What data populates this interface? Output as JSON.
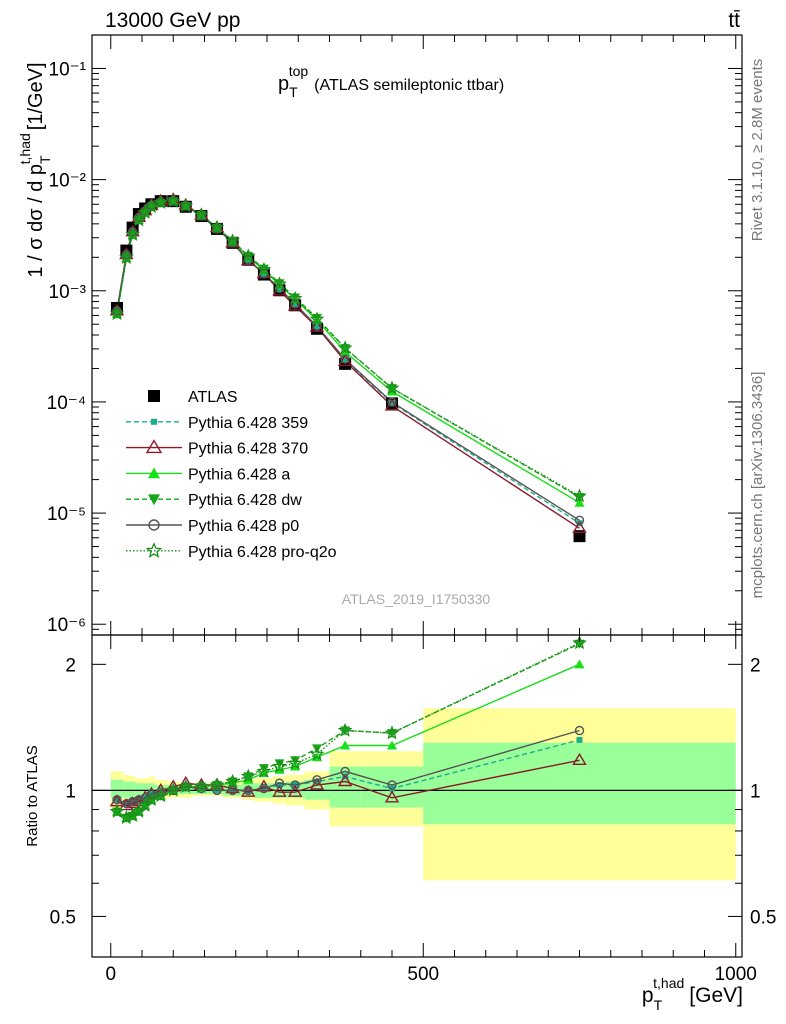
{
  "header": {
    "energy_label": "13000 GeV pp",
    "process_label": "tt̄",
    "analysis_id": "ATLAS_2019_I1750330",
    "rivet_label": "Rivet 3.1.10, ≥ 2.8M events",
    "mcplots_label": "mcplots.cern.ch [arXiv:1306.3436]"
  },
  "chart_data": [
    {
      "type": "line",
      "title_main": "p",
      "title_sub": "T",
      "title_sup": "top",
      "title_rest": "(ATLAS semileptonic ttbar)",
      "ylabel": "1 / σ dσ / d p_T^{t,had} [1/GeV]",
      "yscale": "log",
      "ylim": [
        8e-07,
        0.2
      ],
      "xlim": [
        -30,
        1010
      ],
      "ytick_labels": [
        "10⁻⁶",
        "10⁻⁵",
        "10⁻⁴",
        "10⁻³",
        "10⁻²",
        "10⁻¹"
      ],
      "ytick_values": [
        1e-06,
        1e-05,
        0.0001,
        0.001,
        0.01,
        0.1
      ],
      "legend_position": "middle-left",
      "x": [
        10,
        25,
        35,
        45,
        55,
        65,
        80,
        100,
        120,
        145,
        170,
        195,
        220,
        245,
        270,
        295,
        330,
        375,
        450,
        750
      ],
      "series": [
        {
          "name": "ATLAS",
          "color": "#000000",
          "dash": "",
          "marker": "square",
          "connect": false,
          "values": [
            0.0007,
            0.0023,
            0.0037,
            0.0049,
            0.0055,
            0.006,
            0.0064,
            0.0064,
            0.0057,
            0.0047,
            0.0036,
            0.0027,
            0.0019,
            0.0014,
            0.00101,
            0.00074,
            0.000455,
            0.00022,
            9.7e-05,
            6.2e-06
          ]
        },
        {
          "name": "Pythia 6.428 359",
          "color": "#17b08d",
          "dash": "5,3",
          "marker": "smallsquare",
          "connect": true,
          "values": [
            0.00067,
            0.00215,
            0.00345,
            0.00465,
            0.0053,
            0.0059,
            0.0063,
            0.0064,
            0.0058,
            0.0047,
            0.0036,
            0.0027,
            0.0019,
            0.00142,
            0.00104,
            0.00076,
            0.000478,
            0.000238,
            9.8e-05,
            8.1e-06
          ]
        },
        {
          "name": "Pythia 6.428 370",
          "color": "#8b1a2b",
          "dash": "",
          "marker": "triangle-open",
          "connect": true,
          "values": [
            0.00066,
            0.00212,
            0.0034,
            0.00458,
            0.00525,
            0.0059,
            0.0064,
            0.0066,
            0.0059,
            0.0048,
            0.0037,
            0.0027,
            0.00187,
            0.00143,
            0.001,
            0.00073,
            0.00047,
            0.000232,
            9.2e-05,
            7.3e-06
          ]
        },
        {
          "name": "Pythia 6.428 a",
          "color": "#16e016",
          "dash": "",
          "marker": "triangle",
          "connect": true,
          "values": [
            0.00062,
            0.00198,
            0.0032,
            0.00433,
            0.00505,
            0.0057,
            0.0062,
            0.0064,
            0.0058,
            0.0048,
            0.0037,
            0.0028,
            0.00202,
            0.00153,
            0.00113,
            0.00084,
            0.000545,
            0.000282,
            0.000124,
            1.24e-05
          ]
        },
        {
          "name": "Pythia 6.428 dw",
          "color": "#17a617",
          "dash": "5,3",
          "marker": "triangle-down",
          "connect": true,
          "values": [
            0.00062,
            0.00198,
            0.0032,
            0.00433,
            0.00505,
            0.0057,
            0.0062,
            0.0064,
            0.0058,
            0.0048,
            0.0037,
            0.00282,
            0.00206,
            0.00158,
            0.00117,
            0.00087,
            0.00057,
            0.000305,
            0.000133,
            1.39e-05
          ]
        },
        {
          "name": "Pythia 6.428 p0",
          "color": "#555555",
          "dash": "",
          "marker": "circle-open",
          "connect": true,
          "values": [
            0.00066,
            0.00212,
            0.0034,
            0.00458,
            0.00525,
            0.0059,
            0.0063,
            0.0064,
            0.0058,
            0.0047,
            0.0036,
            0.0027,
            0.0019,
            0.00142,
            0.00105,
            0.00076,
            0.00048,
            0.000243,
            9.95e-05,
            8.6e-06
          ]
        },
        {
          "name": "Pythia 6.428 pro-q2o",
          "color": "#1a8f1a",
          "dash": "1.5,2",
          "marker": "star-open",
          "connect": true,
          "values": [
            0.00062,
            0.00198,
            0.0032,
            0.00433,
            0.00505,
            0.0057,
            0.0062,
            0.0064,
            0.0058,
            0.0048,
            0.0037,
            0.0028,
            0.00205,
            0.00155,
            0.00115,
            0.00085,
            0.000555,
            0.000305,
            0.000133,
            1.42e-05
          ]
        }
      ]
    },
    {
      "type": "line",
      "ylabel": "Ratio to ATLAS",
      "xlabel_main": "p",
      "xlabel_sub": "T",
      "xlabel_sup": "t,had",
      "xlabel_unit": "[GeV]",
      "yscale": "log",
      "ylim": [
        0.4,
        2.35
      ],
      "xlim": [
        -30,
        1010
      ],
      "ytick_labels": [
        "0.5",
        "1",
        "2"
      ],
      "ytick_values": [
        0.5,
        1,
        2
      ],
      "xtick_labels": [
        "0",
        "500",
        "1000"
      ],
      "xtick_values": [
        0,
        500,
        1000
      ],
      "reference_line": 1,
      "x": [
        10,
        25,
        35,
        45,
        55,
        65,
        80,
        100,
        120,
        145,
        170,
        195,
        220,
        245,
        270,
        295,
        330,
        375,
        450,
        750
      ],
      "bins": [
        [
          0,
          20
        ],
        [
          20,
          30
        ],
        [
          30,
          40
        ],
        [
          40,
          50
        ],
        [
          50,
          60
        ],
        [
          60,
          70
        ],
        [
          70,
          90
        ],
        [
          90,
          110
        ],
        [
          110,
          130
        ],
        [
          130,
          160
        ],
        [
          160,
          180
        ],
        [
          180,
          210
        ],
        [
          210,
          230
        ],
        [
          230,
          260
        ],
        [
          260,
          280
        ],
        [
          280,
          310
        ],
        [
          310,
          350
        ],
        [
          350,
          400
        ],
        [
          400,
          500
        ],
        [
          500,
          1000
        ]
      ],
      "band_outer": [
        [
          0.91,
          1.11
        ],
        [
          0.92,
          1.09
        ],
        [
          0.93,
          1.08
        ],
        [
          0.93,
          1.07
        ],
        [
          0.94,
          1.07
        ],
        [
          0.94,
          1.08
        ],
        [
          0.95,
          1.06
        ],
        [
          0.96,
          1.05
        ],
        [
          0.96,
          1.04
        ],
        [
          0.97,
          1.04
        ],
        [
          0.97,
          1.04
        ],
        [
          0.96,
          1.05
        ],
        [
          0.95,
          1.06
        ],
        [
          0.94,
          1.07
        ],
        [
          0.93,
          1.08
        ],
        [
          0.92,
          1.09
        ],
        [
          0.9,
          1.11
        ],
        [
          0.82,
          1.24
        ],
        [
          0.82,
          1.24
        ],
        [
          0.61,
          1.57
        ]
      ],
      "band_inner": [
        [
          0.96,
          1.06
        ],
        [
          0.96,
          1.05
        ],
        [
          0.96,
          1.05
        ],
        [
          0.97,
          1.04
        ],
        [
          0.97,
          1.04
        ],
        [
          0.97,
          1.04
        ],
        [
          0.97,
          1.03
        ],
        [
          0.98,
          1.03
        ],
        [
          0.98,
          1.03
        ],
        [
          0.98,
          1.03
        ],
        [
          0.98,
          1.03
        ],
        [
          0.97,
          1.03
        ],
        [
          0.97,
          1.04
        ],
        [
          0.96,
          1.04
        ],
        [
          0.96,
          1.04
        ],
        [
          0.96,
          1.05
        ],
        [
          0.95,
          1.06
        ],
        [
          0.91,
          1.14
        ],
        [
          0.91,
          1.14
        ],
        [
          0.83,
          1.3
        ]
      ],
      "band_colors": {
        "outer": "#ffff99",
        "inner": "#99ff99"
      },
      "series": [
        {
          "name": "Pythia 6.428 359",
          "color": "#17b08d",
          "dash": "5,3",
          "marker": "smallsquare",
          "values": [
            0.95,
            0.93,
            0.94,
            0.95,
            0.96,
            0.98,
            0.99,
            1.0,
            1.02,
            1.01,
            1.0,
            1.0,
            1.0,
            1.01,
            1.03,
            1.03,
            1.05,
            1.08,
            1.01,
            1.32
          ]
        },
        {
          "name": "Pythia 6.428 370",
          "color": "#8b1a2b",
          "dash": "",
          "marker": "triangle-open",
          "values": [
            0.94,
            0.92,
            0.93,
            0.94,
            0.96,
            0.98,
            1.0,
            1.02,
            1.04,
            1.03,
            1.03,
            1.01,
            0.99,
            1.02,
            0.99,
            0.99,
            1.03,
            1.05,
            0.96,
            1.18
          ]
        },
        {
          "name": "Pythia 6.428 a",
          "color": "#16e016",
          "dash": "",
          "marker": "triangle",
          "values": [
            0.89,
            0.86,
            0.87,
            0.89,
            0.92,
            0.95,
            0.97,
            1.0,
            1.02,
            1.02,
            1.03,
            1.04,
            1.06,
            1.1,
            1.12,
            1.14,
            1.2,
            1.28,
            1.28,
            2.0
          ]
        },
        {
          "name": "Pythia 6.428 dw",
          "color": "#17a617",
          "dash": "5,3",
          "marker": "triangle-down",
          "values": [
            0.89,
            0.86,
            0.87,
            0.89,
            0.92,
            0.95,
            0.97,
            1.0,
            1.02,
            1.02,
            1.03,
            1.05,
            1.08,
            1.13,
            1.16,
            1.18,
            1.26,
            1.39,
            1.37,
            2.24
          ]
        },
        {
          "name": "Pythia 6.428 p0",
          "color": "#555555",
          "dash": "",
          "marker": "circle-open",
          "values": [
            0.95,
            0.93,
            0.94,
            0.95,
            0.96,
            0.98,
            0.99,
            1.0,
            1.02,
            1.01,
            1.0,
            1.0,
            1.0,
            1.01,
            1.04,
            1.03,
            1.06,
            1.11,
            1.03,
            1.39
          ]
        },
        {
          "name": "Pythia 6.428 pro-q2o",
          "color": "#1a8f1a",
          "dash": "1.5,2",
          "marker": "star-open",
          "values": [
            0.89,
            0.86,
            0.87,
            0.89,
            0.92,
            0.95,
            0.97,
            1.0,
            1.02,
            1.02,
            1.03,
            1.05,
            1.08,
            1.11,
            1.14,
            1.16,
            1.22,
            1.39,
            1.37,
            2.25
          ]
        }
      ]
    }
  ]
}
